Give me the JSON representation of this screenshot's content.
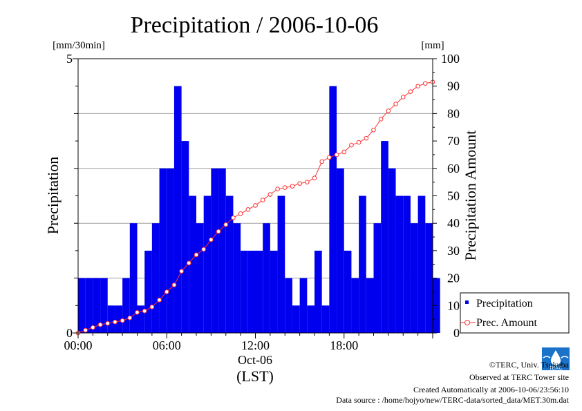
{
  "chart_data": {
    "type": "bar",
    "title": "Precipitation / 2006-10-06",
    "left_unit": "[mm/30min]",
    "right_unit": "[mm]",
    "ylabel": "Precipitation",
    "y2label": "Precipitation Amount",
    "ylim": [
      0,
      5
    ],
    "y2lim": [
      0,
      100
    ],
    "xlim_hours": [
      0,
      24
    ],
    "y_ticks": [
      "0",
      "5"
    ],
    "y2_ticks": [
      "0",
      "10",
      "20",
      "30",
      "40",
      "50",
      "60",
      "70",
      "80",
      "90",
      "100"
    ],
    "x_ticks": [
      {
        "hour": 0,
        "label": "00:00"
      },
      {
        "hour": 6,
        "label": "06:00"
      },
      {
        "hour": 12,
        "label": "12:00"
      },
      {
        "hour": 18,
        "label": "18:00"
      }
    ],
    "x_date_label": "Oct-06",
    "x_tz_label": "(LST)",
    "grid": "horizontal",
    "legend_position": "bottom-right",
    "series": [
      {
        "name": "Precipitation",
        "style": "bar",
        "color": "#0000ee",
        "interval_hours": 0.5,
        "values": [
          1,
          1,
          1,
          1,
          0.5,
          0.5,
          1,
          2,
          0.5,
          1.5,
          2,
          3,
          3,
          4.5,
          3.5,
          2.5,
          2,
          2.5,
          3,
          3,
          2.5,
          2,
          1.5,
          1.5,
          1.5,
          2,
          1.5,
          2.5,
          1,
          0.5,
          1,
          0.5,
          1.5,
          0.5,
          4.5,
          3,
          1.5,
          1,
          2.5,
          1,
          2,
          3.5,
          3,
          2.5,
          2.5,
          2,
          2.5,
          2,
          1
        ]
      },
      {
        "name": "Prec. Amount",
        "style": "line",
        "color": "#ff3030",
        "interval_hours": 0.5,
        "values": [
          0,
          1,
          2,
          3,
          3.5,
          4,
          4.5,
          5.5,
          7.5,
          8,
          9.5,
          12,
          15,
          17.5,
          22.5,
          25.5,
          28.5,
          30.5,
          34,
          37,
          39.5,
          42,
          43.5,
          45,
          46.5,
          48.5,
          50.5,
          52.5,
          53,
          53.5,
          54.5,
          55,
          56.5,
          62.5,
          64,
          65,
          66,
          68.5,
          69.5,
          71,
          74,
          78,
          81,
          83.5,
          86,
          88,
          90,
          91,
          91.5
        ]
      }
    ]
  },
  "footer": {
    "copyright": "©TERC, Univ. Tsukuba",
    "observed": "Observed at TERC Tower site",
    "created": "Created Automatically at 2006-10-06/23:56:10",
    "source": "Data source : /home/hojyo/new/TERC-data/sorted_data/MET.30m.dat",
    "logo_text": "TERC"
  }
}
